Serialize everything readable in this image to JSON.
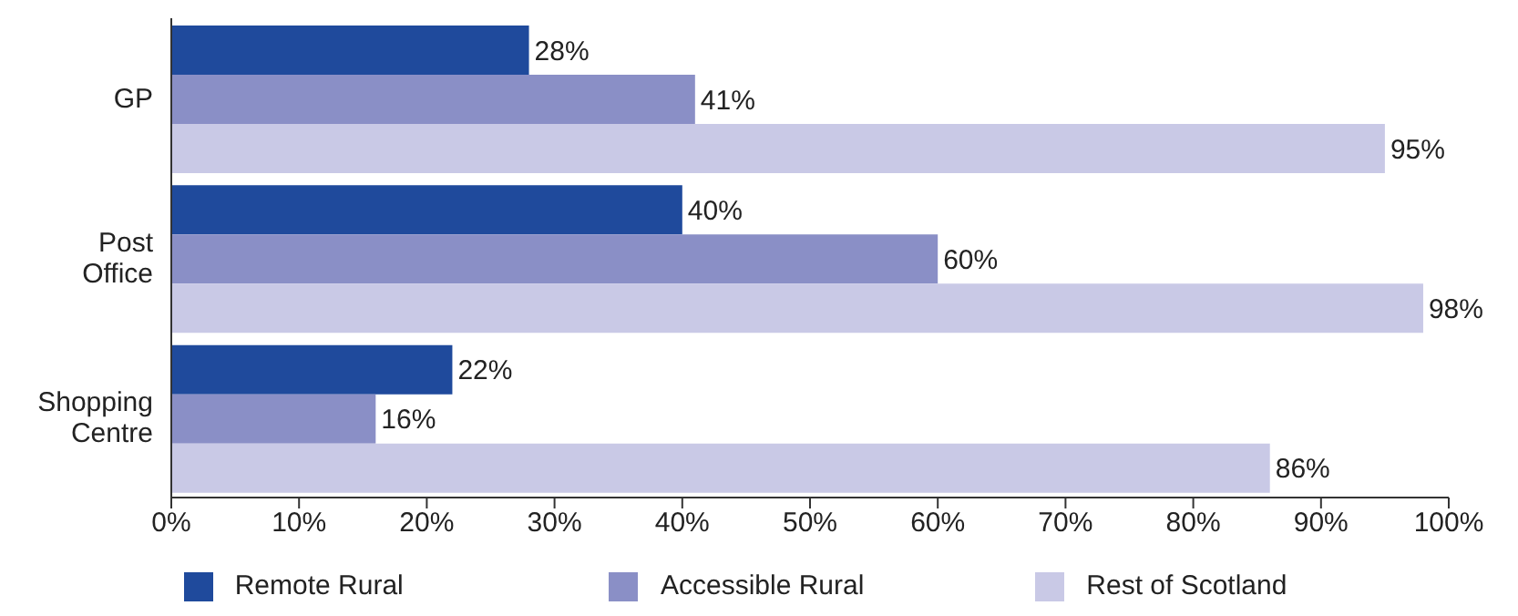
{
  "chart_data": {
    "type": "bar",
    "orientation": "horizontal",
    "categories": [
      "GP",
      "Post Office",
      "Shopping Centre"
    ],
    "series": [
      {
        "name": "Remote Rural",
        "color": "#1f4a9c",
        "values": [
          28,
          40,
          22
        ],
        "value_labels": [
          "28%",
          "40%",
          "22%"
        ]
      },
      {
        "name": "Accessible Rural",
        "color": "#8a8fc6",
        "values": [
          41,
          60,
          16
        ],
        "value_labels": [
          "41%",
          "60%",
          "16%"
        ]
      },
      {
        "name": "Rest of Scotland",
        "color": "#c9c9e6",
        "values": [
          95,
          98,
          86
        ],
        "value_labels": [
          "95%",
          "98%",
          "86%"
        ]
      }
    ],
    "xlim": [
      0,
      100
    ],
    "xticks": [
      {
        "value": 0,
        "label": "0%"
      },
      {
        "value": 10,
        "label": "10%"
      },
      {
        "value": 20,
        "label": "20%"
      },
      {
        "value": 30,
        "label": "30%"
      },
      {
        "value": 40,
        "label": "40%"
      },
      {
        "value": 50,
        "label": "50%"
      },
      {
        "value": 60,
        "label": "60%"
      },
      {
        "value": 70,
        "label": "70%"
      },
      {
        "value": 80,
        "label": "80%"
      },
      {
        "value": 90,
        "label": "90%"
      },
      {
        "value": 100,
        "label": "100%"
      }
    ],
    "grid": false,
    "legend": "bottom"
  }
}
